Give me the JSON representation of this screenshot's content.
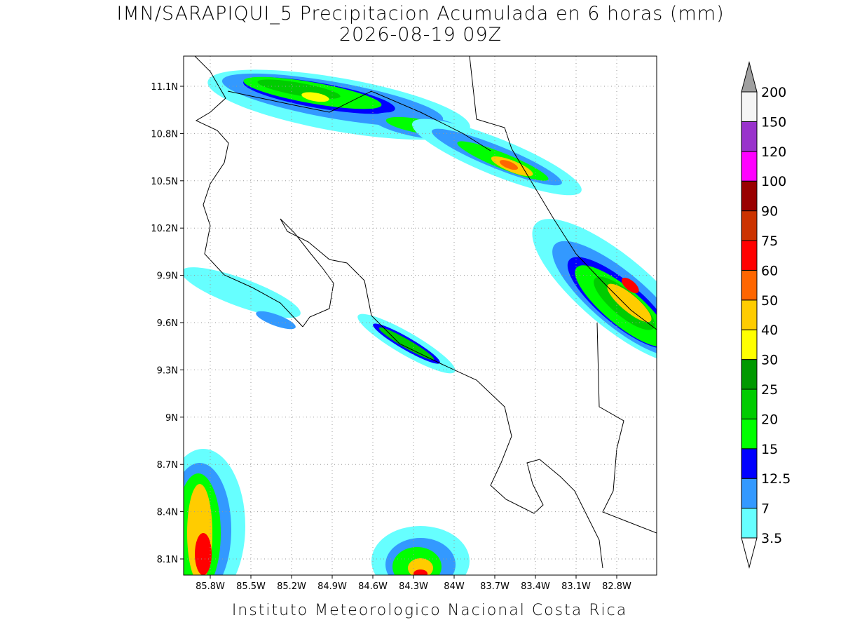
{
  "header": {
    "title": "IMN/SARAPIQUI_5 Precipitacion Acumulada en 6 horas (mm)",
    "subtitle": "2026-08-19 09Z"
  },
  "map": {
    "x_labels": [
      "85.8W",
      "85.5W",
      "85.2W",
      "84.9W",
      "84.6W",
      "84.3W",
      "84W",
      "83.7W",
      "83.4W",
      "83.1W",
      "82.8W"
    ],
    "y_labels": [
      "11.1N",
      "10.8N",
      "10.5N",
      "10.2N",
      "9.9N",
      "9.6N",
      "9.3N",
      "9N",
      "8.7N",
      "8.4N",
      "8.1N"
    ]
  },
  "legend": {
    "labels": [
      "3.5",
      "7",
      "12.5",
      "15",
      "20",
      "25",
      "30",
      "40",
      "50",
      "60",
      "75",
      "90",
      "100",
      "120",
      "150",
      "200"
    ],
    "colors": [
      "#ffffff",
      "#66ffff",
      "#3399ff",
      "#0000ff",
      "#00ff00",
      "#00cc00",
      "#009900",
      "#ffff00",
      "#ffcc00",
      "#ff6600",
      "#ff0000",
      "#cc3300",
      "#990000",
      "#ff00ff",
      "#9933cc",
      "#f5f5f5",
      "#a0a0a0"
    ]
  },
  "footer": "Instituto Meteorologico Nacional Costa Rica"
}
